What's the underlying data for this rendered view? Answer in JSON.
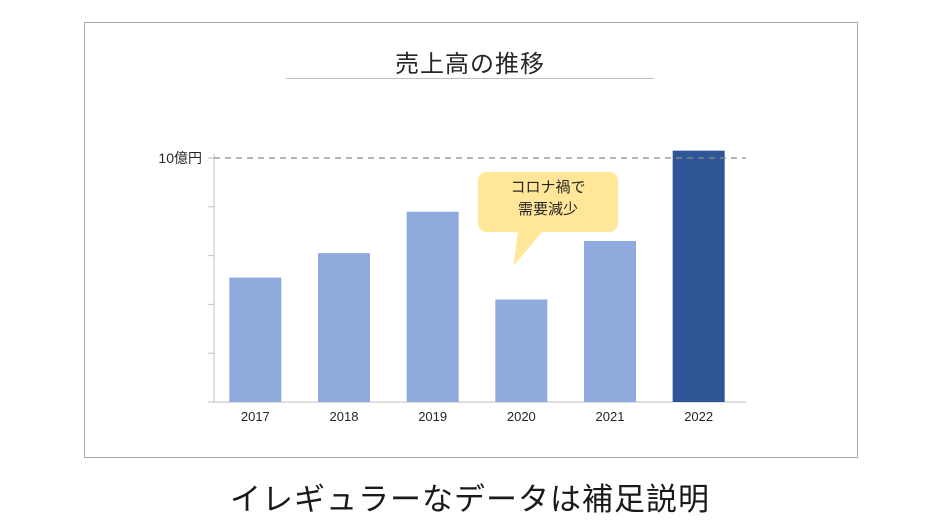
{
  "caption": "イレギュラーなデータは補足説明",
  "chart_data": {
    "type": "bar",
    "title": "売上高の推移",
    "categories": [
      "2017",
      "2018",
      "2019",
      "2020",
      "2021",
      "2022"
    ],
    "values": [
      5.1,
      6.1,
      7.8,
      4.2,
      6.6,
      10.3
    ],
    "ylim": [
      0,
      10
    ],
    "y_ticks": [
      0,
      2,
      4,
      6,
      8,
      10
    ],
    "reference_line": {
      "value": 10,
      "label": "10億円",
      "style": "dashed"
    },
    "highlight_category": "2022",
    "colors": {
      "normal": "#8faadc",
      "highlight": "#2f5597"
    },
    "annotation": {
      "category": "2020",
      "lines": [
        "コロナ禍で",
        "需要減少"
      ],
      "fill": "#ffe699"
    }
  }
}
